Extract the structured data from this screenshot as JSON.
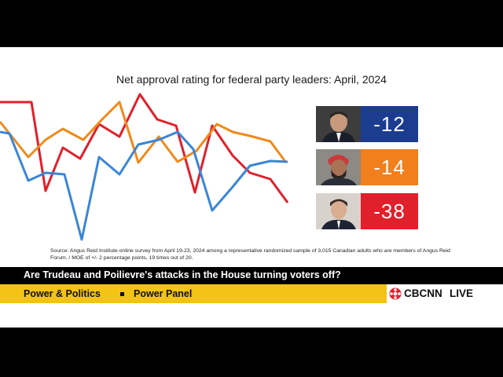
{
  "title": "Net approval rating for federal party leaders: April, 2024",
  "leaders": [
    {
      "score": "-12",
      "color": "#1b3c8f",
      "photo_icon": "poilievre-portrait"
    },
    {
      "score": "-14",
      "color": "#f07f1c",
      "photo_icon": "singh-portrait"
    },
    {
      "score": "-38",
      "color": "#e0202b",
      "photo_icon": "trudeau-portrait"
    }
  ],
  "source": "Source: Angus Reid Institute online survey from April 19-23, 2024 among a representative randomized sample of 3,015 Canadian adults who are members of Angus Reid Forum. / MOE of +/- 2 percentage points, 19 times out of 20.",
  "question": "Are Trudeau and Poilievre's attacks in the House turning voters off?",
  "lower_third": {
    "program": "Power & Politics",
    "segment": "Power Panel"
  },
  "brand": {
    "name": "CBCNN",
    "live": "LIVE",
    "logo_icon": "cbc-gem-icon"
  },
  "decor_lines": {
    "colors": {
      "red": "#e0202b",
      "orange": "#f08a1c",
      "blue": "#3a86d8"
    }
  }
}
